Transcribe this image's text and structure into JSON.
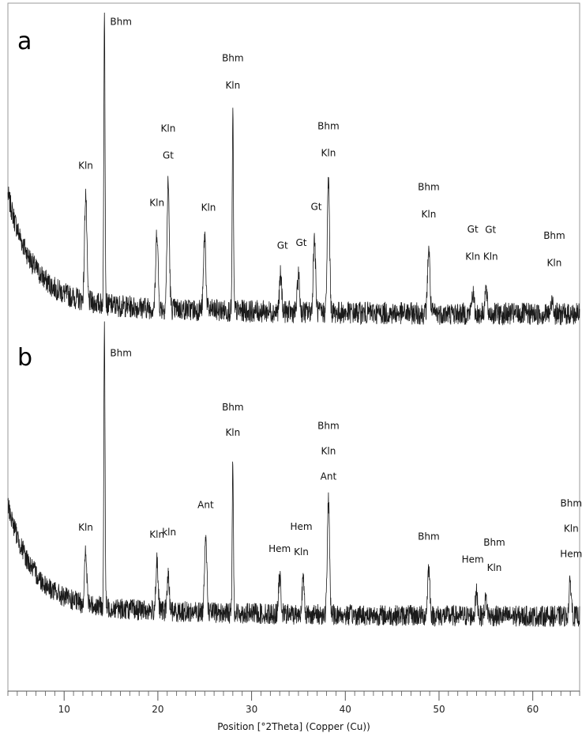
{
  "chart_data": [
    {
      "type": "line",
      "panel_label": "a",
      "color": "#1a1a1a",
      "xlim": [
        4,
        65
      ],
      "peaks": [
        {
          "x": 12.3,
          "h": 0.36
        },
        {
          "x": 14.3,
          "h": 1.0
        },
        {
          "x": 19.9,
          "h": 0.26
        },
        {
          "x": 21.1,
          "h": 0.42
        },
        {
          "x": 25.0,
          "h": 0.25
        },
        {
          "x": 28.0,
          "h": 0.66
        },
        {
          "x": 33.1,
          "h": 0.12
        },
        {
          "x": 35.0,
          "h": 0.12
        },
        {
          "x": 36.7,
          "h": 0.25
        },
        {
          "x": 38.2,
          "h": 0.44
        },
        {
          "x": 48.9,
          "h": 0.22
        },
        {
          "x": 53.6,
          "h": 0.07
        },
        {
          "x": 55.0,
          "h": 0.08
        },
        {
          "x": 62.1,
          "h": 0.05
        }
      ],
      "annotations": [
        {
          "x": 12.3,
          "text": "Kln",
          "above": 0.03
        },
        {
          "x": 14.9,
          "text": "Bhm",
          "above": -0.12
        },
        {
          "x": 19.9,
          "text": "Kln",
          "above": 0.03
        },
        {
          "x": 21.1,
          "text": "Gt",
          "above": 0.03
        },
        {
          "x": 21.1,
          "text": "Kln",
          "above": 0.12
        },
        {
          "x": 25.4,
          "text": "Kln",
          "above": 0.03
        },
        {
          "x": 28.0,
          "text": "Kln",
          "above": 0.03
        },
        {
          "x": 28.0,
          "text": "Bhm",
          "above": 0.12
        },
        {
          "x": 33.3,
          "text": "Gt",
          "above": 0.04
        },
        {
          "x": 35.3,
          "text": "Gt",
          "above": 0.05
        },
        {
          "x": 36.9,
          "text": "Gt",
          "above": 0.04
        },
        {
          "x": 38.2,
          "text": "Kln",
          "above": 0.03
        },
        {
          "x": 38.2,
          "text": "Bhm",
          "above": 0.12
        },
        {
          "x": 48.9,
          "text": "Kln",
          "above": 0.05
        },
        {
          "x": 48.9,
          "text": "Bhm",
          "above": 0.14
        },
        {
          "x": 53.6,
          "text": "Kln",
          "above": 0.06
        },
        {
          "x": 53.6,
          "text": "Gt",
          "above": 0.15
        },
        {
          "x": 55.5,
          "text": "Kln",
          "above": 0.05
        },
        {
          "x": 55.5,
          "text": "Gt",
          "above": 0.14
        },
        {
          "x": 62.3,
          "text": "Kln",
          "above": 0.06
        },
        {
          "x": 62.3,
          "text": "Bhm",
          "above": 0.15
        }
      ]
    },
    {
      "type": "line",
      "panel_label": "b",
      "color": "#1a1a1a",
      "xlim": [
        4,
        65
      ],
      "peaks": [
        {
          "x": 12.3,
          "h": 0.18
        },
        {
          "x": 14.3,
          "h": 1.0
        },
        {
          "x": 19.9,
          "h": 0.17
        },
        {
          "x": 21.1,
          "h": 0.12
        },
        {
          "x": 25.1,
          "h": 0.29
        },
        {
          "x": 28.0,
          "h": 0.55
        },
        {
          "x": 33.0,
          "h": 0.13
        },
        {
          "x": 35.5,
          "h": 0.12
        },
        {
          "x": 38.2,
          "h": 0.4
        },
        {
          "x": 48.9,
          "h": 0.17
        },
        {
          "x": 54.0,
          "h": 0.08
        },
        {
          "x": 55.0,
          "h": 0.06
        },
        {
          "x": 64.0,
          "h": 0.12
        }
      ],
      "annotations": [
        {
          "x": 12.3,
          "text": "Kln",
          "above": 0.03
        },
        {
          "x": 14.9,
          "text": "Bhm",
          "above": -0.16
        },
        {
          "x": 19.9,
          "text": "Kln",
          "above": 0.04
        },
        {
          "x": 21.2,
          "text": "kln",
          "above": 0.1
        },
        {
          "x": 25.1,
          "text": "Ant",
          "above": 0.03
        },
        {
          "x": 28.0,
          "text": "Kln",
          "above": 0.03
        },
        {
          "x": 28.0,
          "text": "Bhm",
          "above": 0.12
        },
        {
          "x": 33.0,
          "text": "Hem",
          "above": 0.04
        },
        {
          "x": 35.3,
          "text": "Kln",
          "above": 0.04
        },
        {
          "x": 35.3,
          "text": "Hem",
          "above": 0.13
        },
        {
          "x": 38.2,
          "text": "Ant",
          "above": 0.03
        },
        {
          "x": 38.2,
          "text": "Kln",
          "above": 0.12
        },
        {
          "x": 38.2,
          "text": "Bhm",
          "above": 0.21
        },
        {
          "x": 48.9,
          "text": "Bhm",
          "above": 0.05
        },
        {
          "x": 53.6,
          "text": "Hem",
          "above": 0.06
        },
        {
          "x": 55.9,
          "text": "Kln",
          "above": 0.05
        },
        {
          "x": 55.9,
          "text": "Bhm",
          "above": 0.14
        },
        {
          "x": 64.1,
          "text": "Hem",
          "above": 0.04
        },
        {
          "x": 64.1,
          "text": "Kln",
          "above": 0.13
        },
        {
          "x": 64.1,
          "text": "Bhm",
          "above": 0.22
        }
      ]
    }
  ],
  "x_axis": {
    "label": "Position [°2Theta] (Copper (Cu))",
    "ticks": [
      10,
      20,
      30,
      40,
      50,
      60
    ],
    "minor_step": 1
  }
}
